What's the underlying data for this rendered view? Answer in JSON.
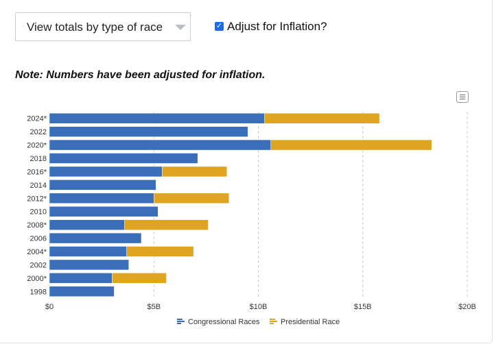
{
  "controls": {
    "view_select_label": "View totals by type of race",
    "inflation_checked": true,
    "inflation_label": "Adjust for Inflation?"
  },
  "note": "Note: Numbers have been adjusted for inflation.",
  "colors": {
    "congressional": "#3a6eb9",
    "presidential": "#dfa520",
    "grid": "#cccccc"
  },
  "icons": {
    "menu": "hamburger-menu-icon",
    "dropdown": "caret-down-icon",
    "legend": "bar-legend-icon"
  },
  "chart_data": {
    "type": "bar",
    "orientation": "horizontal",
    "stacked": true,
    "categories": [
      "2024*",
      "2022",
      "2020*",
      "2018",
      "2016*",
      "2014",
      "2012*",
      "2010",
      "2008*",
      "2006",
      "2004*",
      "2002",
      "2000*",
      "1998"
    ],
    "series": [
      {
        "name": "Congressional Races",
        "color": "#3a6eb9",
        "values": [
          10.3,
          9.5,
          10.6,
          7.1,
          5.4,
          5.1,
          5.0,
          5.2,
          3.6,
          4.4,
          3.7,
          3.8,
          3.0,
          3.1
        ]
      },
      {
        "name": "Presidential Race",
        "color": "#dfa520",
        "values": [
          5.5,
          0,
          7.7,
          0,
          3.1,
          0,
          3.6,
          0,
          4.0,
          0,
          3.2,
          0,
          2.6,
          0
        ]
      }
    ],
    "xlim": [
      0,
      20
    ],
    "x_ticks": [
      0,
      5,
      10,
      15,
      20
    ],
    "x_tick_labels": [
      "$0",
      "$5B",
      "$10B",
      "$15B",
      "$20B"
    ],
    "grid": true,
    "legend_position": "bottom-center"
  }
}
